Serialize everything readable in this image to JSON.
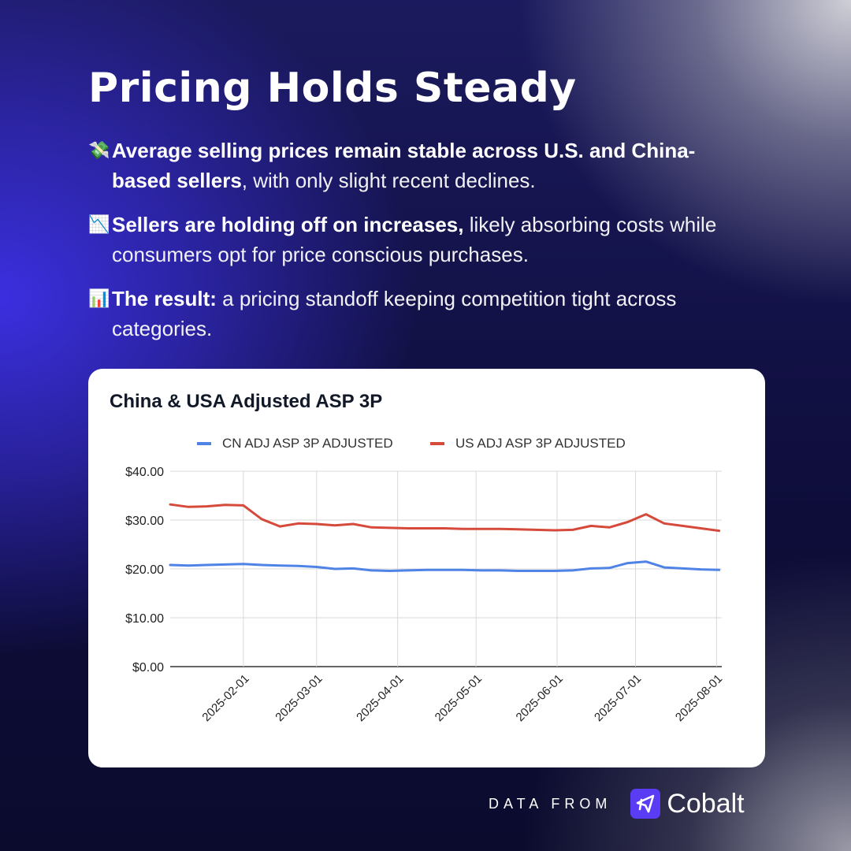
{
  "header": {
    "title": "Pricing Holds Steady"
  },
  "bullets": [
    {
      "icon": "money-with-wings-icon",
      "glyph": "💸",
      "bold": "Average selling prices remain stable across U.S. and China-based sellers",
      "rest": ", with only slight recent declines."
    },
    {
      "icon": "chart-decreasing-icon",
      "glyph": "📉",
      "bold": "Sellers are holding off on increases,",
      "rest": " likely absorbing costs while consumers opt for price conscious purchases."
    },
    {
      "icon": "bar-chart-icon",
      "glyph": "📊",
      "bold": "The result:",
      "rest": " a pricing standoff keeping competition tight across categories."
    }
  ],
  "colors": {
    "cn": "#4f83e6",
    "us": "#d64a3c",
    "brand": "#5b3cf5"
  },
  "chart_data": {
    "type": "line",
    "title": "China & USA Adjusted ASP 3P",
    "xlabel": "",
    "ylabel": "",
    "ylim": [
      0,
      40
    ],
    "yticks": [
      "$0.00",
      "$10.00",
      "$20.00",
      "$30.00",
      "$40.00"
    ],
    "ytick_values": [
      0,
      10,
      20,
      30,
      40
    ],
    "xlim": [
      "2025-01-04",
      "2025-08-03"
    ],
    "xticks": [
      "2025-02-01",
      "2025-03-01",
      "2025-04-01",
      "2025-05-01",
      "2025-06-01",
      "2025-07-01",
      "2025-08-01"
    ],
    "legend_position": "top-center",
    "grid": true,
    "x": [
      "2025-01-04",
      "2025-01-11",
      "2025-01-18",
      "2025-01-25",
      "2025-02-01",
      "2025-02-08",
      "2025-02-15",
      "2025-02-22",
      "2025-03-01",
      "2025-03-08",
      "2025-03-15",
      "2025-03-22",
      "2025-03-29",
      "2025-04-05",
      "2025-04-12",
      "2025-04-19",
      "2025-04-26",
      "2025-05-03",
      "2025-05-10",
      "2025-05-17",
      "2025-05-24",
      "2025-05-31",
      "2025-06-07",
      "2025-06-14",
      "2025-06-21",
      "2025-06-28",
      "2025-07-05",
      "2025-07-12",
      "2025-07-19",
      "2025-07-26",
      "2025-08-02"
    ],
    "series": [
      {
        "name": "CN ADJ ASP 3P ADJUSTED",
        "values": [
          20.8,
          20.7,
          20.8,
          20.9,
          21.0,
          20.8,
          20.7,
          20.6,
          20.4,
          20.0,
          20.1,
          19.7,
          19.6,
          19.7,
          19.8,
          19.8,
          19.8,
          19.7,
          19.7,
          19.6,
          19.6,
          19.6,
          19.7,
          20.1,
          20.2,
          21.2,
          21.5,
          20.3,
          20.1,
          19.9,
          19.8
        ]
      },
      {
        "name": "US ADJ ASP 3P ADJUSTED",
        "values": [
          33.2,
          32.7,
          32.8,
          33.1,
          33.0,
          30.2,
          28.7,
          29.3,
          29.2,
          28.9,
          29.2,
          28.5,
          28.4,
          28.3,
          28.3,
          28.3,
          28.2,
          28.2,
          28.2,
          28.1,
          28.0,
          27.9,
          28.0,
          28.8,
          28.5,
          29.6,
          31.2,
          29.3,
          28.8,
          28.3,
          27.8
        ]
      }
    ]
  },
  "footer": {
    "data_from": "DATA FROM",
    "brand": "Cobalt"
  }
}
